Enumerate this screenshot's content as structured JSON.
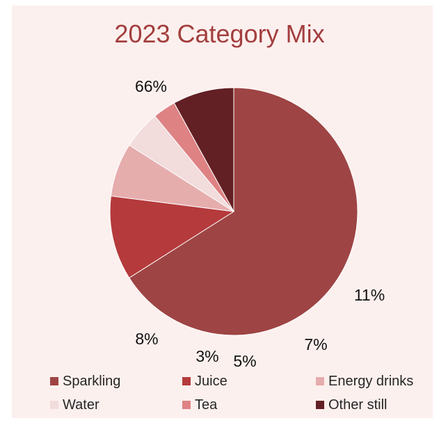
{
  "chart_data": {
    "type": "pie",
    "title": "2023 Category Mix",
    "legend_position": "bottom",
    "slices": [
      {
        "name": "Sparkling",
        "value": 66,
        "label": "66%",
        "color": "#9e4444"
      },
      {
        "name": "Juice",
        "value": 11,
        "label": "11%",
        "color": "#b53a3c"
      },
      {
        "name": "Energy drinks",
        "value": 7,
        "label": "7%",
        "color": "#e6adad"
      },
      {
        "name": "Water",
        "value": 5,
        "label": "5%",
        "color": "#f2dcdc"
      },
      {
        "name": "Tea",
        "value": 3,
        "label": "3%",
        "color": "#de8284"
      },
      {
        "name": "Other still",
        "value": 8,
        "label": "8%",
        "color": "#632024"
      }
    ]
  },
  "colors": {
    "background": "#fcf0ee",
    "title": "#a33e3e"
  }
}
